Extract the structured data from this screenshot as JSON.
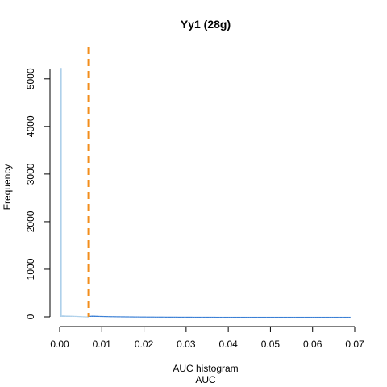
{
  "chart_data": {
    "type": "histogram",
    "title": "Yy1 (28g)",
    "xlabel_line1": "AUC histogram",
    "xlabel_line2": "AUC",
    "ylabel": "Frequency",
    "xlim": [
      0,
      0.07
    ],
    "ylim": [
      0,
      5200
    ],
    "x_ticks": [
      0,
      0.01,
      0.02,
      0.03,
      0.04,
      0.05,
      0.06,
      0.07
    ],
    "x_tick_labels": [
      "0.00",
      "0.01",
      "0.02",
      "0.03",
      "0.04",
      "0.05",
      "0.06",
      "0.07"
    ],
    "y_ticks": [
      0,
      1000,
      2000,
      3000,
      4000,
      5000
    ],
    "y_tick_labels": [
      "0",
      "1000",
      "2000",
      "3000",
      "4000",
      "5000"
    ],
    "threshold": 0.0069,
    "bin_width": 0.0005,
    "series": [
      {
        "color": "#aed0ea",
        "values": [
          5230,
          30,
          28,
          26,
          25,
          24,
          22,
          20,
          18,
          16,
          14,
          12,
          10,
          8
        ]
      },
      {
        "color": "#3a7fd5",
        "values": [
          0,
          0,
          0,
          0,
          0,
          0,
          0,
          0,
          0,
          0,
          0,
          0,
          0,
          0,
          22,
          25,
          24,
          22,
          20,
          19,
          18,
          17,
          16,
          15,
          14,
          14,
          13,
          12,
          12,
          11,
          11,
          10,
          10,
          9,
          9,
          8,
          8,
          8,
          7,
          7,
          7,
          6,
          6,
          6,
          6,
          5,
          5,
          5,
          5,
          5,
          4,
          4,
          4,
          4,
          4,
          4,
          3,
          3,
          3,
          3,
          3,
          3,
          3,
          2,
          2,
          2,
          2,
          2,
          2,
          2,
          2,
          2,
          2,
          2,
          1,
          1,
          1,
          1,
          1,
          1,
          1,
          1,
          1,
          1,
          1,
          1,
          1,
          1,
          1,
          1,
          1,
          1,
          1,
          1,
          1,
          1,
          1,
          1,
          1,
          1,
          1,
          1,
          1,
          1,
          1,
          1,
          1,
          1,
          1,
          1,
          1,
          1,
          1,
          1,
          1,
          1,
          1,
          1,
          1,
          1,
          1,
          1,
          1,
          1,
          1,
          1,
          1,
          1,
          1,
          1,
          1,
          1,
          1,
          1,
          1,
          1,
          1,
          1
        ]
      }
    ],
    "threshold_color": "#f28e1c"
  }
}
